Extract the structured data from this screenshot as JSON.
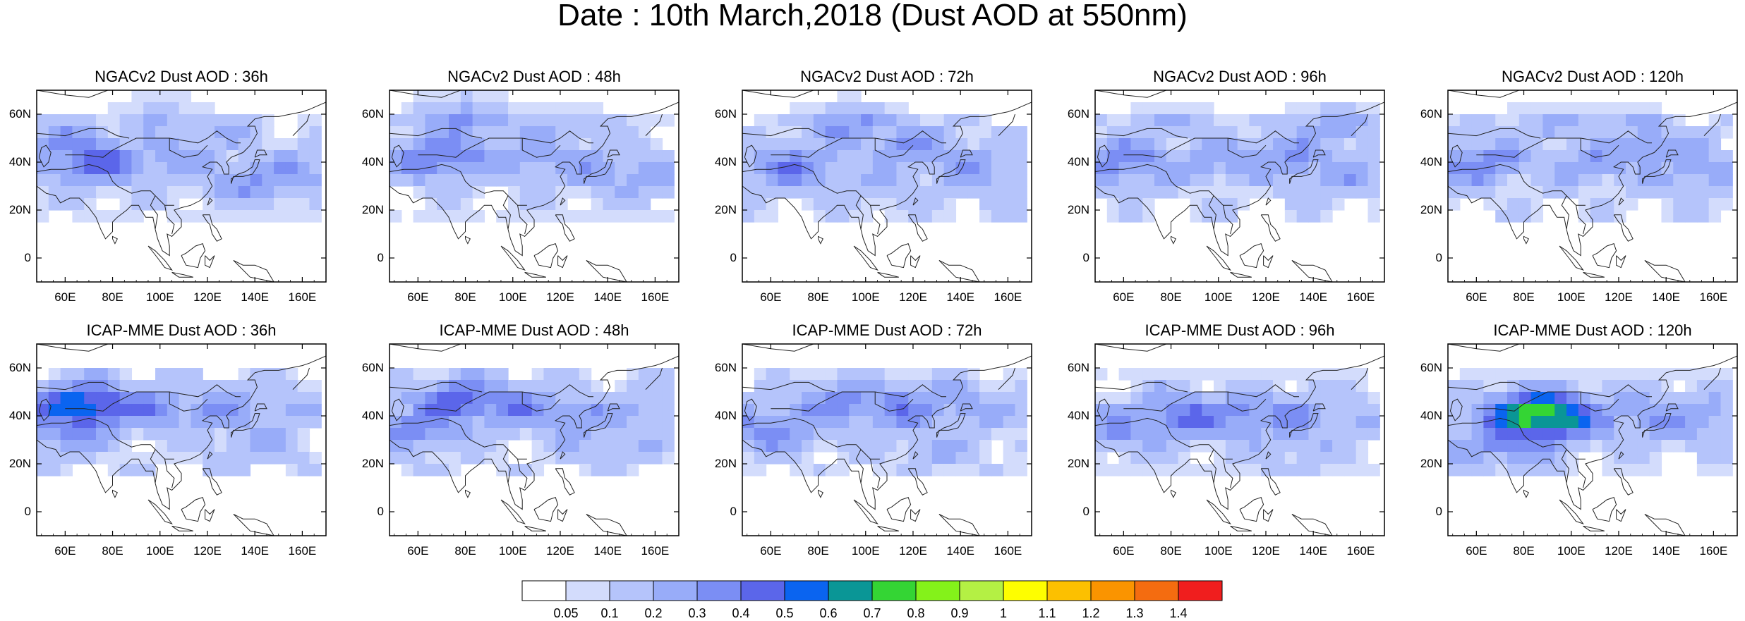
{
  "title": "Date : 10th March,2018 (Dust AOD at 550nm)",
  "panels": [
    {
      "title": "NGACv2 Dust AOD : 36h",
      "model": "NGACv2",
      "lead": "36h",
      "fields": [
        [
          72,
          40,
          0.35
        ],
        [
          65,
          45,
          0.3
        ],
        [
          105,
          42,
          0.2
        ],
        [
          140,
          33,
          0.25
        ],
        [
          155,
          36,
          0.2
        ],
        [
          120,
          50,
          0.15
        ],
        [
          100,
          60,
          0.12
        ]
      ]
    },
    {
      "title": "NGACv2 Dust AOD : 48h",
      "model": "NGACv2",
      "lead": "48h",
      "fields": [
        [
          70,
          42,
          0.35
        ],
        [
          80,
          58,
          0.25
        ],
        [
          110,
          42,
          0.2
        ],
        [
          140,
          37,
          0.2
        ],
        [
          155,
          35,
          0.2
        ],
        [
          120,
          55,
          0.15
        ]
      ]
    },
    {
      "title": "NGACv2 Dust AOD : 72h",
      "model": "NGACv2",
      "lead": "72h",
      "fields": [
        [
          70,
          38,
          0.3
        ],
        [
          95,
          55,
          0.25
        ],
        [
          120,
          45,
          0.25
        ],
        [
          145,
          38,
          0.2
        ],
        [
          155,
          32,
          0.15
        ],
        [
          110,
          30,
          0.15
        ]
      ]
    },
    {
      "title": "NGACv2 Dust AOD : 96h",
      "model": "NGACv2",
      "lead": "96h",
      "fields": [
        [
          60,
          40,
          0.3
        ],
        [
          100,
          40,
          0.2
        ],
        [
          130,
          42,
          0.25
        ],
        [
          150,
          35,
          0.2
        ],
        [
          150,
          55,
          0.2
        ],
        [
          80,
          55,
          0.15
        ]
      ]
    },
    {
      "title": "NGACv2 Dust AOD : 120h",
      "model": "NGACv2",
      "lead": "120h",
      "fields": [
        [
          60,
          40,
          0.3
        ],
        [
          110,
          40,
          0.2
        ],
        [
          135,
          45,
          0.25
        ],
        [
          155,
          35,
          0.2
        ],
        [
          120,
          55,
          0.15
        ],
        [
          90,
          55,
          0.15
        ]
      ]
    },
    {
      "title": "ICAP-MME Dust AOD : 36h",
      "model": "ICAP-MME",
      "lead": "36h",
      "fields": [
        [
          68,
          44,
          0.55
        ],
        [
          60,
          35,
          0.3
        ],
        [
          95,
          43,
          0.3
        ],
        [
          125,
          42,
          0.25
        ],
        [
          150,
          42,
          0.15
        ],
        [
          140,
          30,
          0.15
        ]
      ]
    },
    {
      "title": "ICAP-MME Dust AOD : 48h",
      "model": "ICAP-MME",
      "lead": "48h",
      "fields": [
        [
          78,
          46,
          0.4
        ],
        [
          60,
          35,
          0.3
        ],
        [
          100,
          44,
          0.3
        ],
        [
          125,
          40,
          0.25
        ],
        [
          150,
          42,
          0.15
        ],
        [
          140,
          30,
          0.15
        ]
      ]
    },
    {
      "title": "ICAP-MME Dust AOD : 72h",
      "model": "ICAP-MME",
      "lead": "72h",
      "fields": [
        [
          90,
          44,
          0.3
        ],
        [
          60,
          35,
          0.3
        ],
        [
          115,
          44,
          0.3
        ],
        [
          135,
          44,
          0.2
        ],
        [
          155,
          44,
          0.15
        ],
        [
          130,
          28,
          0.15
        ]
      ]
    },
    {
      "title": "ICAP-MME Dust AOD : 96h",
      "model": "ICAP-MME",
      "lead": "96h",
      "fields": [
        [
          85,
          40,
          0.35
        ],
        [
          60,
          35,
          0.25
        ],
        [
          110,
          40,
          0.3
        ],
        [
          130,
          40,
          0.25
        ],
        [
          150,
          40,
          0.15
        ],
        [
          130,
          28,
          0.15
        ]
      ]
    },
    {
      "title": "ICAP-MME Dust AOD : 120h",
      "model": "ICAP-MME",
      "lead": "120h",
      "fields": [
        [
          87,
          40,
          0.75
        ],
        [
          75,
          30,
          0.35
        ],
        [
          105,
          40,
          0.3
        ],
        [
          135,
          40,
          0.25
        ],
        [
          155,
          38,
          0.2
        ],
        [
          60,
          35,
          0.2
        ]
      ]
    }
  ],
  "axes": {
    "lon_range": [
      48,
      170
    ],
    "lat_range": [
      -10,
      70
    ],
    "x_ticks": [
      "60E",
      "80E",
      "100E",
      "120E",
      "140E",
      "160E"
    ],
    "x_tick_values": [
      60,
      80,
      100,
      120,
      140,
      160
    ],
    "y_ticks": [
      "60N",
      "40N",
      "20N",
      "0"
    ],
    "y_tick_values": [
      60,
      40,
      20,
      0
    ]
  },
  "colorbar": {
    "labels": [
      "0.05",
      "0.1",
      "0.2",
      "0.3",
      "0.4",
      "0.5",
      "0.6",
      "0.7",
      "0.8",
      "0.9",
      "1",
      "1.1",
      "1.2",
      "1.3",
      "1.4"
    ],
    "thresholds": [
      0.05,
      0.1,
      0.2,
      0.3,
      0.4,
      0.5,
      0.6,
      0.7,
      0.8,
      0.9,
      1.0,
      1.1,
      1.2,
      1.3,
      1.4
    ],
    "colors": [
      "#ffffff",
      "#d3dcfc",
      "#b5c4fb",
      "#98acf9",
      "#7b8ef4",
      "#5b66ea",
      "#0a64f0",
      "#0a9696",
      "#34d534",
      "#84f21a",
      "#b4f044",
      "#fefe00",
      "#fcc000",
      "#fa9400",
      "#f46c10",
      "#f01e1e"
    ]
  },
  "chart_data": {
    "type": "heatmap",
    "title": "Date : 10th March,2018 (Dust AOD at 550nm)",
    "variable": "Dust AOD at 550nm",
    "date": "10th March,2018",
    "models": [
      "NGACv2",
      "ICAP-MME"
    ],
    "leads": [
      "36h",
      "48h",
      "72h",
      "96h",
      "120h"
    ],
    "xlim": [
      48,
      170
    ],
    "ylim": [
      -10,
      70
    ]
  }
}
